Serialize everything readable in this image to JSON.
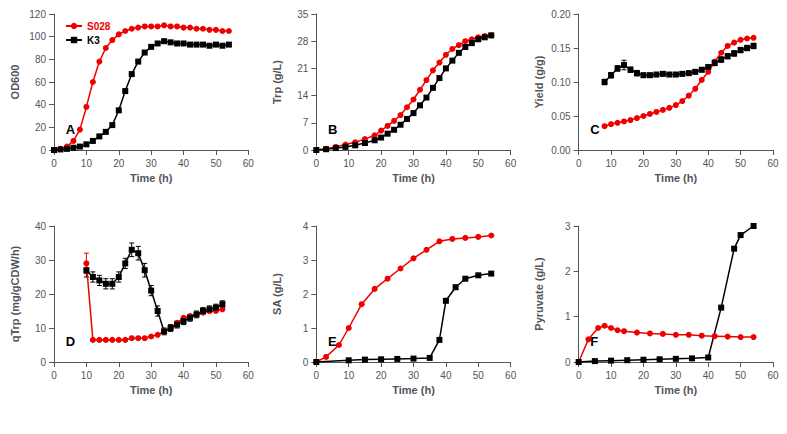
{
  "chart_data": [
    {
      "type": "line",
      "xlabel": "Time (h)",
      "ylabel": "OD600",
      "annotation": "A",
      "xlim": [
        0,
        60
      ],
      "xticks": [
        0,
        10,
        20,
        30,
        40,
        50,
        60
      ],
      "ylim": [
        0,
        120
      ],
      "yticks": [
        0,
        20,
        40,
        60,
        80,
        100,
        120
      ],
      "grid": false,
      "legend": "upper left",
      "series": [
        {
          "name": "S028",
          "color": "#ee0000",
          "marker": "circle",
          "x": [
            0,
            2,
            4,
            6,
            8,
            10,
            12,
            14,
            16,
            18,
            20,
            22,
            24,
            26,
            28,
            30,
            32,
            34,
            36,
            38,
            40,
            42,
            44,
            46,
            48,
            50,
            52,
            54
          ],
          "values": [
            0,
            1,
            3,
            8,
            18,
            38,
            60,
            78,
            90,
            97,
            102,
            105,
            107,
            108,
            109,
            109,
            109,
            110,
            109,
            109,
            108,
            108,
            107,
            107,
            106,
            106,
            105,
            105
          ]
        },
        {
          "name": "K3",
          "color": "#000000",
          "marker": "square",
          "x": [
            0,
            2,
            4,
            6,
            8,
            10,
            12,
            14,
            16,
            18,
            20,
            22,
            24,
            26,
            28,
            30,
            32,
            34,
            36,
            38,
            40,
            42,
            44,
            46,
            48,
            50,
            52,
            54
          ],
          "values": [
            0,
            0.5,
            1,
            2,
            3,
            5,
            8,
            12,
            16,
            22,
            35,
            52,
            67,
            78,
            86,
            91,
            94,
            96,
            95,
            94,
            94,
            93,
            93,
            93,
            92,
            93,
            92,
            93
          ]
        }
      ]
    },
    {
      "type": "line",
      "xlabel": "Time (h)",
      "ylabel": "Trp (g/L)",
      "annotation": "B",
      "xlim": [
        0,
        60
      ],
      "xticks": [
        0,
        10,
        20,
        30,
        40,
        50,
        60
      ],
      "ylim": [
        0,
        35
      ],
      "yticks": [
        0,
        7,
        14,
        21,
        28,
        35
      ],
      "grid": false,
      "series": [
        {
          "color": "#ee0000",
          "marker": "circle",
          "x": [
            0,
            3,
            6,
            9,
            12,
            15,
            18,
            20,
            22,
            24,
            26,
            28,
            30,
            32,
            34,
            36,
            38,
            40,
            42,
            44,
            46,
            48,
            50,
            52,
            54
          ],
          "values": [
            0,
            0.3,
            0.8,
            1.4,
            2.0,
            2.8,
            3.8,
            5.0,
            6.2,
            7.5,
            9.0,
            11.0,
            13.0,
            15.5,
            18.0,
            20.5,
            22.5,
            24.5,
            26.0,
            27.0,
            28.0,
            28.5,
            29.0,
            29.3,
            29.5
          ]
        },
        {
          "color": "#000000",
          "marker": "square",
          "x": [
            0,
            3,
            6,
            9,
            12,
            15,
            18,
            20,
            22,
            24,
            26,
            28,
            30,
            32,
            34,
            36,
            38,
            40,
            42,
            44,
            46,
            48,
            50,
            52,
            54
          ],
          "values": [
            0,
            0.2,
            0.5,
            0.8,
            1.2,
            1.8,
            2.5,
            3.2,
            4.2,
            5.2,
            6.5,
            8.0,
            9.5,
            11.5,
            13.5,
            16.0,
            18.5,
            21.0,
            23.0,
            25.0,
            26.5,
            27.5,
            28.5,
            29.0,
            29.5
          ]
        }
      ]
    },
    {
      "type": "line",
      "xlabel": "Time (h)",
      "ylabel": "Yield (g/g)",
      "annotation": "C",
      "xlim": [
        0,
        60
      ],
      "xticks": [
        0,
        10,
        20,
        30,
        40,
        50,
        60
      ],
      "ylim": [
        0.0,
        0.2
      ],
      "yticks": [
        {
          "value": 0,
          "label": "0.00"
        },
        0.05,
        {
          "value": 0.1,
          "label": "0.10"
        },
        0.15,
        {
          "value": 0.2,
          "label": "0.20"
        }
      ],
      "grid": false,
      "series": [
        {
          "color": "#ee0000",
          "marker": "circle",
          "x": [
            8,
            10,
            12,
            14,
            16,
            18,
            20,
            22,
            24,
            26,
            28,
            30,
            32,
            34,
            36,
            38,
            40,
            42,
            44,
            46,
            48,
            50,
            52,
            54
          ],
          "values": [
            0.035,
            0.038,
            0.04,
            0.042,
            0.044,
            0.047,
            0.05,
            0.053,
            0.056,
            0.059,
            0.062,
            0.066,
            0.072,
            0.08,
            0.09,
            0.103,
            0.115,
            0.13,
            0.143,
            0.153,
            0.158,
            0.162,
            0.164,
            0.165
          ]
        },
        {
          "color": "#000000",
          "marker": "square",
          "x": [
            8,
            10,
            12,
            14,
            16,
            18,
            20,
            22,
            24,
            26,
            28,
            30,
            32,
            34,
            36,
            38,
            40,
            42,
            44,
            46,
            48,
            50,
            52,
            54
          ],
          "values": [
            0.1,
            0.11,
            0.12,
            0.125,
            0.118,
            0.113,
            0.11,
            0.11,
            0.111,
            0.112,
            0.111,
            0.111,
            0.112,
            0.113,
            0.115,
            0.118,
            0.122,
            0.128,
            0.133,
            0.138,
            0.142,
            0.147,
            0.15,
            0.153
          ],
          "errors": [
            0.004,
            0.004,
            0.004,
            0.007,
            0.004,
            0.004,
            0.003,
            0.003,
            0.003,
            0.003,
            0.003,
            0.003,
            0.003,
            0.003,
            0.003,
            0.003,
            0.003,
            0.004,
            0.004,
            0.004,
            0.004,
            0.004,
            0.004,
            0.004
          ]
        }
      ]
    },
    {
      "type": "line",
      "xlabel": "Time (h)",
      "ylabel": "qTrp (mg/gCDW/h)",
      "annotation": "D",
      "xlim": [
        0,
        60
      ],
      "xticks": [
        0,
        10,
        20,
        30,
        40,
        50,
        60
      ],
      "ylim": [
        0,
        40
      ],
      "yticks": [
        0,
        10,
        20,
        30,
        40
      ],
      "grid": false,
      "series": [
        {
          "color": "#ee0000",
          "marker": "circle",
          "x": [
            10,
            12,
            14,
            16,
            18,
            20,
            22,
            24,
            26,
            28,
            30,
            32,
            34,
            36,
            38,
            40,
            42,
            44,
            46,
            48,
            50,
            52
          ],
          "values": [
            29,
            6.5,
            6.5,
            6.5,
            6.5,
            6.5,
            6.5,
            7.0,
            7.0,
            7.0,
            7.5,
            8.0,
            9.0,
            10.0,
            11.5,
            13.0,
            13.5,
            14.0,
            14.5,
            15.0,
            15.0,
            15.5
          ],
          "errors": [
            3.0,
            0.0,
            0.0,
            0.0,
            0.0,
            0.0,
            0.0,
            0.0,
            0.0,
            0.0,
            0.0,
            0.0,
            0.0,
            0.0,
            0.0,
            0.0,
            0.0,
            0.0,
            0.0,
            0.0,
            0.0,
            0.0
          ]
        },
        {
          "color": "#000000",
          "marker": "square",
          "x": [
            10,
            12,
            14,
            16,
            18,
            20,
            22,
            24,
            26,
            28,
            30,
            32,
            34,
            36,
            38,
            40,
            42,
            44,
            46,
            48,
            50,
            52
          ],
          "values": [
            27,
            25,
            24,
            23,
            23,
            25,
            29,
            33,
            32,
            27,
            21,
            15,
            9,
            10,
            11,
            12,
            13,
            14,
            15,
            15.5,
            16,
            17
          ],
          "errors": [
            2.0,
            1.5,
            1.5,
            1.5,
            1.5,
            1.5,
            1.5,
            2.0,
            2.0,
            2.0,
            1.5,
            1.5,
            1.0,
            1.0,
            1.0,
            1.0,
            1.0,
            1.0,
            1.0,
            1.0,
            1.0,
            1.0
          ]
        }
      ]
    },
    {
      "type": "line",
      "xlabel": "Time (h)",
      "ylabel": "SA (g/L)",
      "annotation": "E",
      "xlim": [
        0,
        60
      ],
      "xticks": [
        0,
        10,
        20,
        30,
        40,
        50,
        60
      ],
      "ylim": [
        0,
        4
      ],
      "yticks": [
        0,
        1,
        2,
        3,
        4
      ],
      "grid": false,
      "series": [
        {
          "color": "#ee0000",
          "marker": "circle",
          "x": [
            0,
            3,
            7,
            10,
            14,
            18,
            22,
            26,
            30,
            34,
            38,
            42,
            46,
            50,
            54
          ],
          "values": [
            0,
            0.15,
            0.5,
            1.0,
            1.7,
            2.15,
            2.45,
            2.75,
            3.05,
            3.3,
            3.55,
            3.62,
            3.65,
            3.68,
            3.72
          ]
        },
        {
          "color": "#000000",
          "marker": "square",
          "x": [
            0,
            10,
            15,
            20,
            25,
            30,
            35,
            38,
            40,
            43,
            46,
            50,
            54
          ],
          "values": [
            0,
            0.05,
            0.07,
            0.08,
            0.09,
            0.1,
            0.12,
            0.65,
            1.8,
            2.2,
            2.45,
            2.55,
            2.6
          ]
        }
      ]
    },
    {
      "type": "line",
      "xlabel": "Time (h)",
      "ylabel": "Pyruvate (g/L)",
      "annotation": "F",
      "xlim": [
        0,
        60
      ],
      "xticks": [
        0,
        10,
        20,
        30,
        40,
        50,
        60
      ],
      "ylim": [
        0,
        3
      ],
      "yticks": [
        0,
        1,
        2,
        3
      ],
      "grid": false,
      "series": [
        {
          "color": "#ee0000",
          "marker": "circle",
          "x": [
            0,
            3,
            6,
            8,
            10,
            12,
            14,
            18,
            22,
            26,
            30,
            34,
            38,
            42,
            46,
            50,
            54
          ],
          "values": [
            0,
            0.5,
            0.75,
            0.8,
            0.75,
            0.7,
            0.68,
            0.65,
            0.63,
            0.62,
            0.6,
            0.6,
            0.58,
            0.57,
            0.56,
            0.55,
            0.55
          ]
        },
        {
          "color": "#000000",
          "marker": "square",
          "x": [
            0,
            5,
            10,
            15,
            20,
            25,
            30,
            35,
            40,
            44,
            48,
            50,
            54
          ],
          "values": [
            0,
            0.02,
            0.03,
            0.04,
            0.05,
            0.06,
            0.07,
            0.08,
            0.1,
            1.2,
            2.5,
            2.8,
            3.0
          ]
        }
      ]
    }
  ]
}
